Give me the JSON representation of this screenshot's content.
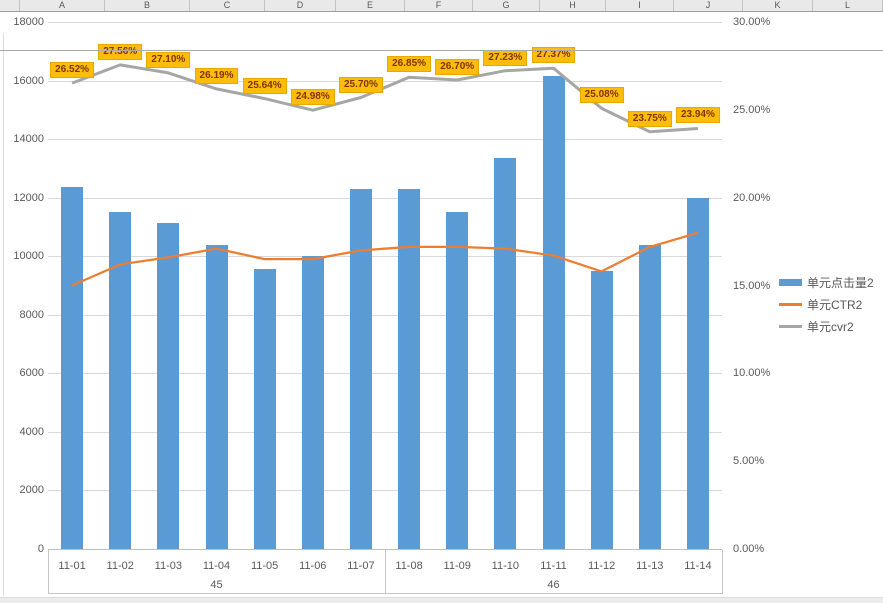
{
  "spreadsheet": {
    "columns": [
      "A",
      "B",
      "C",
      "D",
      "E",
      "F",
      "G",
      "H",
      "I",
      "J",
      "K",
      "L"
    ]
  },
  "legend": {
    "items": [
      {
        "label": "单元点击量2",
        "color": "#5b9bd5",
        "type": "bar"
      },
      {
        "label": "单元CTR2",
        "color": "#ed7d31",
        "type": "line"
      },
      {
        "label": "单元cvr2",
        "color": "#a6a6a6",
        "type": "line"
      }
    ]
  },
  "chart_data": {
    "type": "bar",
    "subtype": "combo-bar-line",
    "categories": [
      "11-01",
      "11-02",
      "11-03",
      "11-04",
      "11-05",
      "11-06",
      "11-07",
      "11-08",
      "11-09",
      "11-10",
      "11-11",
      "11-12",
      "11-13",
      "11-14"
    ],
    "category_groups": [
      {
        "label": "45",
        "start": 0,
        "end": 7
      },
      {
        "label": "46",
        "start": 7,
        "end": 14
      }
    ],
    "series": [
      {
        "name": "单元点击量2",
        "type": "bar",
        "axis": "left",
        "color": "#5b9bd5",
        "values": [
          12350,
          11500,
          11150,
          10400,
          9550,
          10000,
          12300,
          12300,
          11500,
          13350,
          16150,
          9500,
          10400,
          12000
        ]
      },
      {
        "name": "单元CTR2",
        "type": "line",
        "axis": "right",
        "color": "#ed7d31",
        "stroke_width": 2.25,
        "values": [
          15.0,
          16.2,
          16.6,
          17.1,
          16.5,
          16.5,
          17.0,
          17.2,
          17.2,
          17.1,
          16.7,
          15.8,
          17.2,
          18.0
        ]
      },
      {
        "name": "单元cvr2",
        "type": "line",
        "axis": "right",
        "color": "#a6a6a6",
        "stroke_width": 3,
        "values": [
          26.52,
          27.56,
          27.1,
          26.19,
          25.64,
          24.98,
          25.7,
          26.85,
          26.7,
          27.23,
          27.37,
          25.08,
          23.75,
          23.94
        ],
        "data_labels": [
          "26.52%",
          "27.56%",
          "27.10%",
          "26.19%",
          "25.64%",
          "24.98%",
          "25.70%",
          "26.85%",
          "26.70%",
          "27.23%",
          "27.37%",
          "25.08%",
          "23.75%",
          "23.94%"
        ],
        "data_label_style": {
          "fill": "#fcbd0a",
          "text_color": "#7f3500"
        }
      }
    ],
    "left_axis": {
      "min": 0,
      "max": 18000,
      "step": 2000,
      "ticks": [
        "0",
        "2000",
        "4000",
        "6000",
        "8000",
        "10000",
        "12000",
        "14000",
        "16000",
        "18000"
      ]
    },
    "right_axis": {
      "min": 0,
      "max": 30,
      "step": 5,
      "ticks": [
        "0.00%",
        "5.00%",
        "10.00%",
        "15.00%",
        "20.00%",
        "25.00%",
        "30.00%"
      ]
    },
    "grid": "horizontal",
    "legend_position": "right"
  }
}
